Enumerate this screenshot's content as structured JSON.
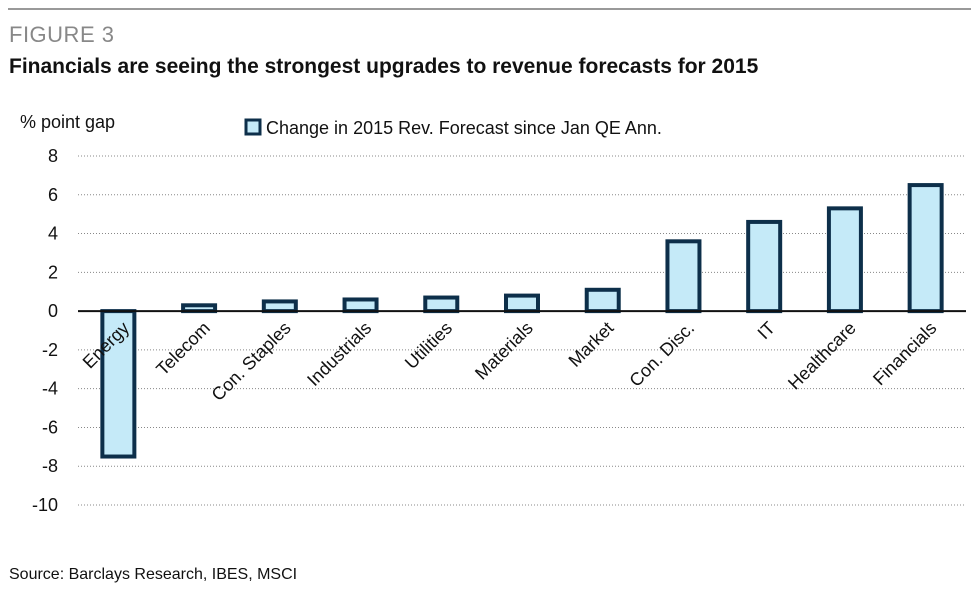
{
  "figure": {
    "label": "FIGURE 3",
    "title": "Financials are seeing the strongest upgrades to revenue forecasts for 2015",
    "source": "Source: Barclays Research, IBES, MSCI"
  },
  "colors": {
    "bar_fill": "#c5eaf8",
    "bar_stroke": "#0d2f4a",
    "grid": "#888888",
    "zero_axis": "#111111"
  },
  "chart_data": {
    "type": "bar",
    "title": "Financials are seeing the strongest upgrades to revenue forecasts for 2015",
    "xlabel": "",
    "ylabel": "% point gap",
    "ylim": [
      -10,
      8
    ],
    "yticks": [
      8,
      6,
      4,
      2,
      0,
      -2,
      -4,
      -6,
      -8,
      -10
    ],
    "grid": "horizontal dotted",
    "legend_position": "top",
    "categories": [
      "Energy",
      "Telecom",
      "Con. Staples",
      "Industrials",
      "Utilities",
      "Materials",
      "Market",
      "Con. Disc.",
      "IT",
      "Healthcare",
      "Financials"
    ],
    "series": [
      {
        "name": "Change in 2015 Rev. Forecast since Jan QE Ann.",
        "values": [
          -7.5,
          0.3,
          0.5,
          0.6,
          0.7,
          0.8,
          1.1,
          3.6,
          4.6,
          5.3,
          6.5
        ]
      }
    ]
  }
}
